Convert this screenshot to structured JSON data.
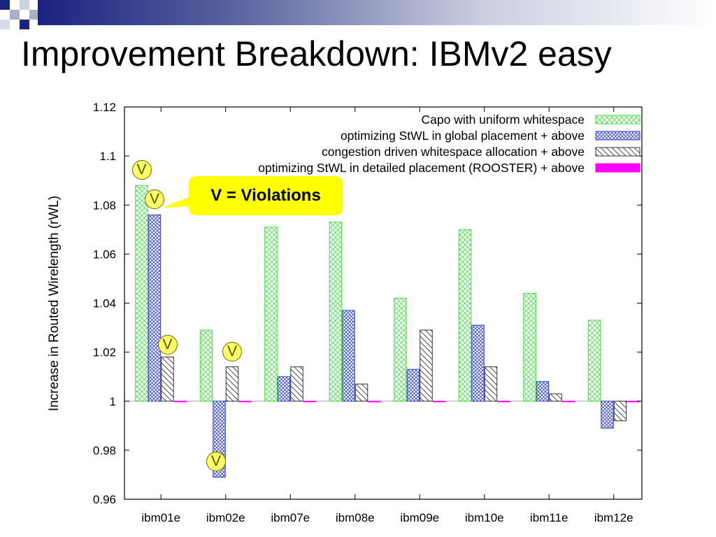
{
  "slide": {
    "title": "Improvement Breakdown: IBMv2 easy",
    "callout_text": "V = Violations",
    "violation_marker": "V"
  },
  "colors": {
    "green": "#33dd33",
    "blue": "#3333cc",
    "black": "#333333",
    "magenta": "#ff00ff",
    "callout": "#ffff00",
    "navy": "#1a237e"
  },
  "chart_data": {
    "type": "bar",
    "title": "",
    "xlabel": "",
    "ylabel": "Increase in Routed Wirelength (rWL)",
    "ylim": [
      0.96,
      1.12
    ],
    "yticks": [
      "0.96",
      "0.98",
      "1",
      "1.02",
      "1.04",
      "1.06",
      "1.08",
      "1.1",
      "1.12"
    ],
    "baseline": 1.0,
    "legend_position": "top-right",
    "categories": [
      "ibm01e",
      "ibm02e",
      "ibm07e",
      "ibm08e",
      "ibm09e",
      "ibm10e",
      "ibm11e",
      "ibm12e"
    ],
    "series": [
      {
        "name": "Capo with uniform whitespace",
        "pattern": "crosshatch-green",
        "values": [
          1.088,
          1.029,
          1.071,
          1.073,
          1.042,
          1.07,
          1.044,
          1.033
        ]
      },
      {
        "name": "optimizing StWL in global placement + above",
        "pattern": "crosshatch-blue",
        "values": [
          1.076,
          0.969,
          1.01,
          1.037,
          1.013,
          1.031,
          1.008,
          0.989
        ]
      },
      {
        "name": "congestion driven whitespace allocation + above",
        "pattern": "diagonal-black",
        "values": [
          1.018,
          1.014,
          1.014,
          1.007,
          1.029,
          1.014,
          1.003,
          0.992
        ]
      },
      {
        "name": "optimizing StWL in detailed placement (ROOSTER) + above",
        "pattern": "solid-magenta",
        "values": [
          1.0,
          1.0,
          1.0,
          1.0,
          1.0,
          1.0,
          1.0,
          1.0
        ]
      }
    ],
    "violations": [
      {
        "category": "ibm01e",
        "series": 0
      },
      {
        "category": "ibm01e",
        "series": 1
      },
      {
        "category": "ibm01e",
        "series": 2
      },
      {
        "category": "ibm02e",
        "series": 1
      },
      {
        "category": "ibm02e",
        "series": 2
      }
    ]
  }
}
